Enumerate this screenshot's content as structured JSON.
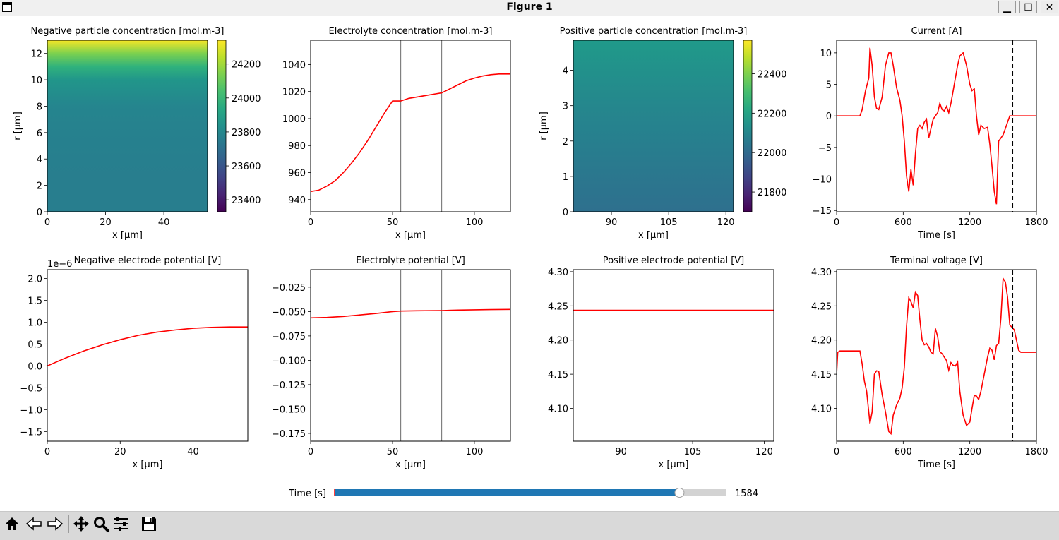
{
  "window": {
    "title": "Figure 1",
    "minimize": "▁",
    "maximize": "☐",
    "close": "✕"
  },
  "colors": {
    "line": "#ff0000",
    "slider_fill": "#1f77b4",
    "divider": "#808080"
  },
  "slider": {
    "label": "Time [s]",
    "value": 1584,
    "min": 0,
    "max": 1800,
    "value_text": "1584"
  },
  "toolbar": {
    "icons": [
      "home-icon",
      "back-icon",
      "forward-icon",
      "pan-icon",
      "zoom-icon",
      "configure-icon",
      "save-icon"
    ]
  },
  "chart_data": [
    {
      "type": "heatmap",
      "title": "Negative particle concentration [mol.m-3]",
      "xlabel": "x [μm]",
      "ylabel": "r [μm]",
      "xlim": [
        0,
        55
      ],
      "ylim": [
        0,
        13
      ],
      "xticks": [
        "0",
        "20",
        "40"
      ],
      "xtick_values": [
        0,
        20,
        40
      ],
      "yticks": [
        "0",
        "2",
        "4",
        "6",
        "8",
        "10",
        "12"
      ],
      "ytick_values": [
        0,
        2,
        4,
        6,
        8,
        10,
        12
      ],
      "r_values": [
        0,
        2,
        4,
        6,
        8,
        10,
        11,
        12,
        13
      ],
      "values": [
        23760,
        23760,
        23765,
        23775,
        23790,
        23860,
        23980,
        24140,
        24330
      ],
      "colormap": "viridis",
      "clim": [
        23330,
        24340
      ],
      "colorbar_ticks": [
        "23400",
        "23600",
        "23800",
        "24000",
        "24200"
      ],
      "colorbar_values": [
        23400,
        23600,
        23800,
        24000,
        24200
      ]
    },
    {
      "type": "line",
      "title": "Electrolyte concentration [mol.m-3]",
      "xlabel": "x [μm]",
      "ylabel": "",
      "xlim": [
        0,
        122
      ],
      "ylim": [
        931,
        1058
      ],
      "xticks": [
        "0",
        "50",
        "100"
      ],
      "xtick_values": [
        0,
        50,
        100
      ],
      "yticks": [
        "940",
        "960",
        "980",
        "1000",
        "1020",
        "1040"
      ],
      "ytick_values": [
        940,
        960,
        980,
        1000,
        1020,
        1040
      ],
      "vlines": [
        55,
        80
      ],
      "x": [
        0,
        5,
        10,
        15,
        20,
        25,
        30,
        35,
        40,
        45,
        50,
        55,
        60,
        65,
        70,
        75,
        80,
        85,
        90,
        95,
        100,
        105,
        110,
        115,
        120,
        122
      ],
      "y": [
        946,
        947,
        950,
        954,
        960,
        967,
        975,
        984,
        994,
        1004,
        1013,
        1013,
        1015,
        1016,
        1017,
        1018,
        1019,
        1022,
        1025,
        1028,
        1030,
        1031.5,
        1032.5,
        1033,
        1033,
        1033
      ]
    },
    {
      "type": "heatmap",
      "title": "Positive particle concentration [mol.m-3]",
      "xlabel": "x [μm]",
      "ylabel": "r [μm]",
      "xlim": [
        80,
        122
      ],
      "ylim": [
        0,
        4.85
      ],
      "xticks": [
        "90",
        "105",
        "120"
      ],
      "xtick_values": [
        90,
        105,
        120
      ],
      "yticks": [
        "0",
        "1",
        "2",
        "3",
        "4"
      ],
      "ytick_values": [
        0,
        1,
        2,
        3,
        4
      ],
      "r_values": [
        0,
        1,
        2,
        3,
        4,
        4.85
      ],
      "values": [
        22020,
        22045,
        22075,
        22105,
        22140,
        22170
      ],
      "colormap": "viridis",
      "clim": [
        21700,
        22570
      ],
      "colorbar_ticks": [
        "21800",
        "22000",
        "22200",
        "22400"
      ],
      "colorbar_values": [
        21800,
        22000,
        22200,
        22400
      ]
    },
    {
      "type": "line",
      "title": "Current [A]",
      "xlabel": "Time [s]",
      "ylabel": "",
      "xlim": [
        0,
        1800
      ],
      "ylim": [
        -15.2,
        12
      ],
      "xticks": [
        "0",
        "600",
        "1200",
        "1800"
      ],
      "xtick_values": [
        0,
        600,
        1200,
        1800
      ],
      "yticks": [
        "−15",
        "−10",
        "−5",
        "0",
        "5",
        "10"
      ],
      "ytick_values": [
        -15,
        -10,
        -5,
        0,
        5,
        10
      ],
      "vline": 1584,
      "x": [
        0,
        210,
        230,
        260,
        290,
        300,
        320,
        340,
        360,
        380,
        410,
        440,
        470,
        490,
        510,
        540,
        570,
        590,
        610,
        630,
        650,
        670,
        690,
        710,
        730,
        750,
        770,
        790,
        810,
        830,
        850,
        870,
        890,
        910,
        930,
        950,
        970,
        990,
        1010,
        1030,
        1050,
        1070,
        1090,
        1110,
        1140,
        1170,
        1200,
        1220,
        1240,
        1260,
        1280,
        1300,
        1330,
        1360,
        1380,
        1400,
        1420,
        1440,
        1460,
        1480,
        1500,
        1520,
        1540,
        1560,
        1580,
        1584,
        1600,
        1620,
        1640,
        1660,
        1680,
        1700,
        1800
      ],
      "y": [
        0,
        0,
        1,
        4,
        6,
        10.8,
        8,
        3,
        1.2,
        1,
        3,
        8,
        10,
        10,
        8,
        4.5,
        2.5,
        0,
        -4,
        -9.5,
        -12,
        -8.5,
        -11,
        -6,
        -2,
        -1.5,
        -2,
        -1,
        -0.5,
        -3.5,
        -2,
        -0.5,
        0,
        0.5,
        2,
        1,
        0.8,
        1.5,
        0.5,
        2,
        4,
        6,
        8,
        9.5,
        10,
        8,
        5,
        4,
        4.3,
        0,
        -3,
        -1.5,
        -2,
        -1.8,
        -4.5,
        -8,
        -12,
        -14,
        -4,
        -3.5,
        -3,
        -2,
        -1,
        0,
        0,
        0,
        0,
        0,
        0,
        0,
        0,
        0,
        0
      ]
    },
    {
      "type": "line",
      "title": "Negative electrode potential [V]",
      "xlabel": "x [μm]",
      "ylabel": "",
      "offset_text": "1e−6",
      "xlim": [
        0,
        55
      ],
      "ylim": [
        -1.72,
        2.2
      ],
      "xticks": [
        "0",
        "20",
        "40"
      ],
      "xtick_values": [
        0,
        20,
        40
      ],
      "yticks": [
        "−1.5",
        "−1.0",
        "−0.5",
        "0.0",
        "0.5",
        "1.0",
        "1.5",
        "2.0"
      ],
      "ytick_values": [
        -1.5,
        -1.0,
        -0.5,
        0.0,
        0.5,
        1.0,
        1.5,
        2.0
      ],
      "x": [
        0,
        5,
        10,
        15,
        20,
        25,
        30,
        35,
        40,
        45,
        50,
        55
      ],
      "y": [
        0,
        0.18,
        0.34,
        0.48,
        0.6,
        0.7,
        0.77,
        0.82,
        0.86,
        0.88,
        0.89,
        0.89
      ]
    },
    {
      "type": "line",
      "title": "Electrolyte potential [V]",
      "xlabel": "x [μm]",
      "ylabel": "",
      "xlim": [
        0,
        122
      ],
      "ylim": [
        -0.183,
        -0.007
      ],
      "xticks": [
        "0",
        "50",
        "100"
      ],
      "xtick_values": [
        0,
        50,
        100
      ],
      "yticks": [
        "−0.175",
        "−0.150",
        "−0.125",
        "−0.100",
        "−0.075",
        "−0.050",
        "−0.025"
      ],
      "ytick_values": [
        -0.175,
        -0.15,
        -0.125,
        -0.1,
        -0.075,
        -0.05,
        -0.025
      ],
      "vlines": [
        55,
        80
      ],
      "x": [
        0,
        10,
        20,
        30,
        40,
        50,
        55,
        65,
        80,
        90,
        100,
        110,
        122
      ],
      "y": [
        -0.0565,
        -0.056,
        -0.055,
        -0.0535,
        -0.052,
        -0.05,
        -0.0495,
        -0.0492,
        -0.049,
        -0.0485,
        -0.0482,
        -0.048,
        -0.0478
      ]
    },
    {
      "type": "line",
      "title": "Positive electrode potential [V]",
      "xlabel": "x [μm]",
      "ylabel": "",
      "xlim": [
        80,
        122
      ],
      "ylim": [
        4.052,
        4.303
      ],
      "xticks": [
        "90",
        "105",
        "120"
      ],
      "xtick_values": [
        90,
        105,
        120
      ],
      "yticks": [
        "4.10",
        "4.15",
        "4.20",
        "4.25",
        "4.30"
      ],
      "ytick_values": [
        4.1,
        4.15,
        4.2,
        4.25,
        4.3
      ],
      "x": [
        80,
        122
      ],
      "y": [
        4.2435,
        4.2435
      ]
    },
    {
      "type": "line",
      "title": "Terminal voltage [V]",
      "xlabel": "Time [s]",
      "ylabel": "",
      "xlim": [
        0,
        1800
      ],
      "ylim": [
        4.052,
        4.303
      ],
      "xticks": [
        "0",
        "600",
        "1200",
        "1800"
      ],
      "xtick_values": [
        0,
        600,
        1200,
        1800
      ],
      "yticks": [
        "4.10",
        "4.15",
        "4.20",
        "4.25",
        "4.30"
      ],
      "ytick_values": [
        4.1,
        4.15,
        4.2,
        4.25,
        4.3
      ],
      "vline": 1584,
      "x": [
        0,
        10,
        30,
        210,
        230,
        250,
        270,
        300,
        320,
        340,
        360,
        380,
        410,
        440,
        470,
        490,
        510,
        540,
        570,
        590,
        610,
        630,
        650,
        670,
        690,
        710,
        730,
        750,
        770,
        790,
        810,
        830,
        850,
        870,
        890,
        910,
        930,
        950,
        970,
        990,
        1010,
        1030,
        1050,
        1070,
        1090,
        1110,
        1140,
        1170,
        1200,
        1220,
        1240,
        1260,
        1280,
        1300,
        1330,
        1360,
        1380,
        1400,
        1420,
        1440,
        1460,
        1480,
        1500,
        1520,
        1540,
        1560,
        1584,
        1600,
        1620,
        1640,
        1660,
        1680,
        1700,
        1800
      ],
      "y": [
        4.15,
        4.182,
        4.184,
        4.184,
        4.165,
        4.14,
        4.125,
        4.078,
        4.095,
        4.15,
        4.155,
        4.154,
        4.12,
        4.095,
        4.066,
        4.063,
        4.09,
        4.105,
        4.115,
        4.13,
        4.16,
        4.22,
        4.262,
        4.256,
        4.247,
        4.27,
        4.265,
        4.23,
        4.2,
        4.193,
        4.195,
        4.19,
        4.182,
        4.18,
        4.217,
        4.205,
        4.183,
        4.18,
        4.175,
        4.17,
        4.156,
        4.167,
        4.163,
        4.162,
        4.168,
        4.125,
        4.09,
        4.075,
        4.08,
        4.1,
        4.119,
        4.118,
        4.113,
        4.125,
        4.15,
        4.175,
        4.188,
        4.185,
        4.171,
        4.192,
        4.195,
        4.232,
        4.29,
        4.285,
        4.263,
        4.222,
        4.218,
        4.215,
        4.2,
        4.185,
        4.182,
        4.182,
        4.182,
        4.182
      ]
    }
  ]
}
